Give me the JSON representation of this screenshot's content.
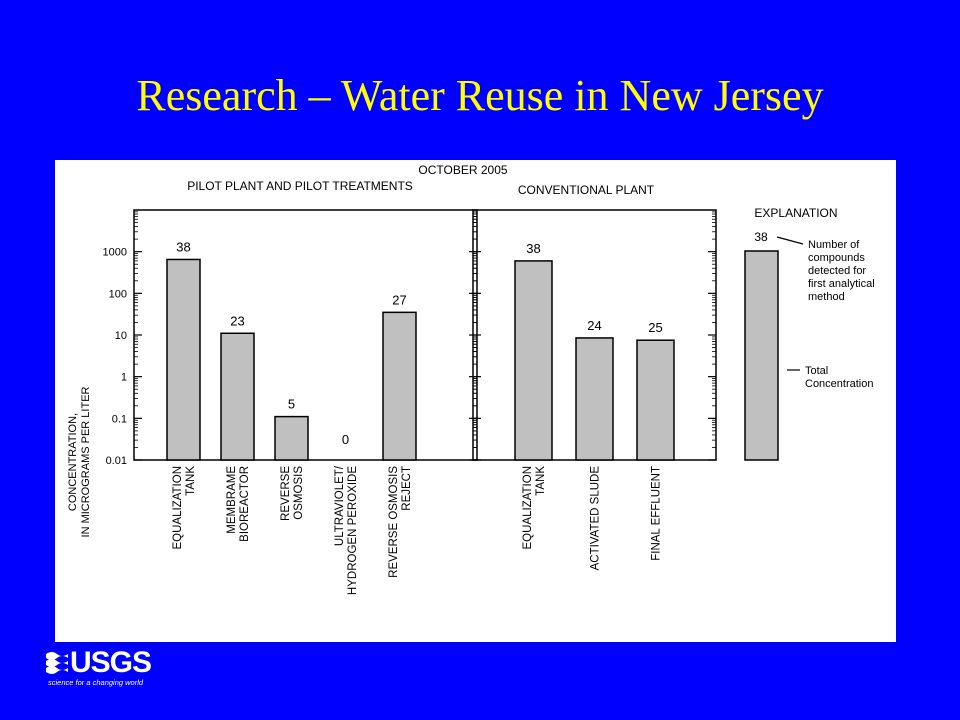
{
  "slide": {
    "title": "Research – Water Reuse in New Jersey"
  },
  "figure": {
    "date_label": "OCTOBER 2005"
  },
  "chart_data": [
    {
      "type": "bar",
      "panel_title": "PILOT PLANT AND PILOT TREATMENTS",
      "ylabel_lines": [
        "CONCENTRATION,",
        "IN MICROGRAMS PER LITER"
      ],
      "yscale": "log",
      "ylim": [
        0.01,
        10000
      ],
      "yticks": [
        "0.01",
        "0.1",
        "1",
        "10",
        "100",
        "1000"
      ],
      "categories": [
        [
          "EQUALIZATION",
          "TANK"
        ],
        [
          "MEMBRAME",
          "BIOREACTOR"
        ],
        [
          "REVERSE",
          "OSMOSIS"
        ],
        [
          "ULTRAVIOLET/",
          "HYDROGEN PEROXIDE"
        ],
        [
          "REVERSE OSMOSIS",
          "REJECT"
        ]
      ],
      "values": [
        650,
        11,
        0.11,
        null,
        35
      ],
      "labels": [
        "38",
        "23",
        "5",
        "0",
        "27"
      ]
    },
    {
      "type": "bar",
      "panel_title": "CONVENTIONAL PLANT",
      "yscale": "log",
      "ylim": [
        0.01,
        10000
      ],
      "categories": [
        [
          "EQUALIZATION",
          "TANK"
        ],
        [
          "ACTIVATED SLUDE"
        ],
        [
          "FINAL EFFLUENT"
        ]
      ],
      "values": [
        600,
        8.5,
        7.5
      ],
      "labels": [
        "38",
        "24",
        "25"
      ]
    }
  ],
  "explanation": {
    "title": "EXPLANATION",
    "example_label": "38",
    "count_note": [
      "Number of",
      "compounds",
      "detected for",
      "first analytical",
      "method"
    ],
    "total_note": [
      "Total",
      "Concentration"
    ]
  },
  "logo": {
    "text": "USGS",
    "tagline": "science for a changing world"
  }
}
